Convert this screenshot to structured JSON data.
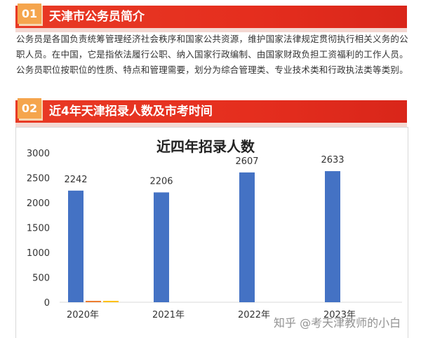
{
  "section1": {
    "number": "01",
    "title": "天津市公务员简介",
    "paragraph": "公务员是各国负责统筹管理经济社会秩序和国家公共资源，维护国家法律规定贯彻执行相关义务的公职人员。在中国，它是指依法履行公职、纳入国家行政编制、由国家财政负担工资福利的工作人员。公务员职位按职位的性质、特点和管理需要，划分为综合管理类、专业技术类和行政执法类等类别。"
  },
  "section2": {
    "number": "02",
    "title": "近4年天津招录人数及市考时间"
  },
  "colors": {
    "header_red": "#e52e1e",
    "number_orange": "#f5a54d",
    "bar_blue": "#4472c4",
    "bar_orange": "#ed7d31"
  },
  "chart_data": {
    "type": "bar",
    "title": "近四年招录人数",
    "categories": [
      "2020年",
      "2021年",
      "2022年",
      "2023年"
    ],
    "series": [
      {
        "values": [
          2242,
          2206,
          2607,
          2633
        ],
        "color": "#4472c4"
      },
      {
        "values": [
          30,
          0,
          0,
          0
        ],
        "color": "#ed7d31"
      },
      {
        "values": [
          30,
          0,
          0,
          0
        ],
        "color": "#ffc000"
      }
    ],
    "data_labels": [
      "2242",
      "2206",
      "2607",
      "2633"
    ],
    "y_ticks": [
      "0",
      "500",
      "1000",
      "1500",
      "2000",
      "2500",
      "3000"
    ],
    "ylim": [
      0,
      3000
    ],
    "grid": false
  },
  "watermark": "知乎 @考天津教师的小白"
}
